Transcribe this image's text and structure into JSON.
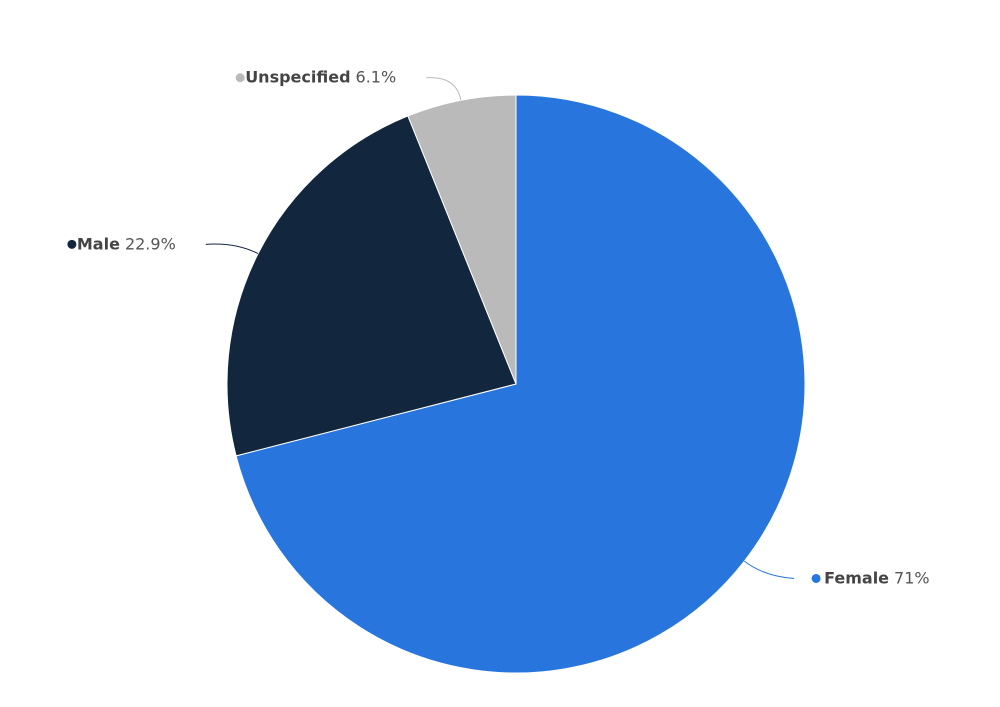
{
  "chart_data": {
    "type": "pie",
    "categories": [
      "Female",
      "Male",
      "Unspecified"
    ],
    "values": [
      71,
      22.9,
      6.1
    ],
    "value_labels": [
      "71%",
      "22.9%",
      "6.1%"
    ],
    "colors": [
      "#2876dd",
      "#12263e",
      "#bababa"
    ]
  }
}
